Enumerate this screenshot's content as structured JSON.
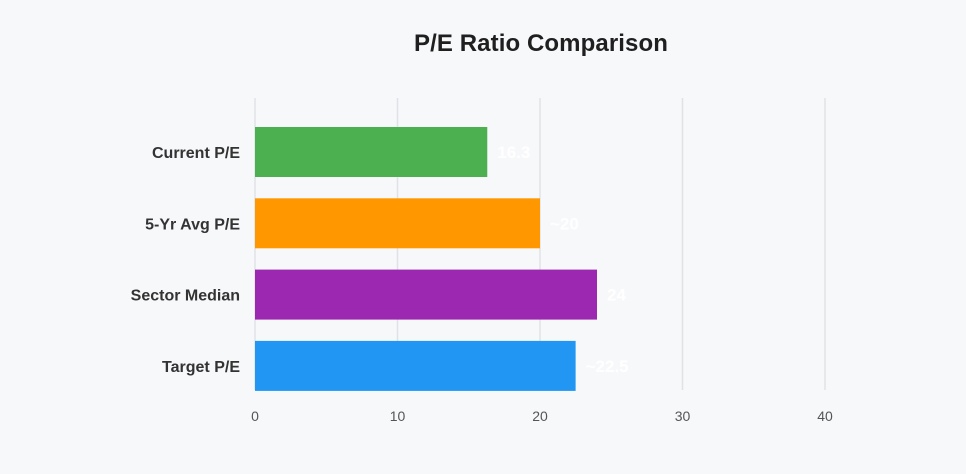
{
  "chart_data": {
    "type": "bar",
    "orientation": "horizontal",
    "title": "P/E Ratio Comparison",
    "xlabel": "",
    "ylabel": "",
    "xlim": [
      0,
      40
    ],
    "x_ticks": [
      "0",
      "10",
      "20",
      "30",
      "40"
    ],
    "grid": true,
    "categories": [
      "Current P/E",
      "5-Yr Avg P/E",
      "Sector Median",
      "Target P/E"
    ],
    "values": [
      16.3,
      20,
      24,
      22.5
    ],
    "data_labels": [
      "16.3",
      "~20",
      "24",
      "~22.5"
    ],
    "colors": [
      "#4caf50",
      "#ff9800",
      "#9c27b0",
      "#2196f3"
    ]
  }
}
